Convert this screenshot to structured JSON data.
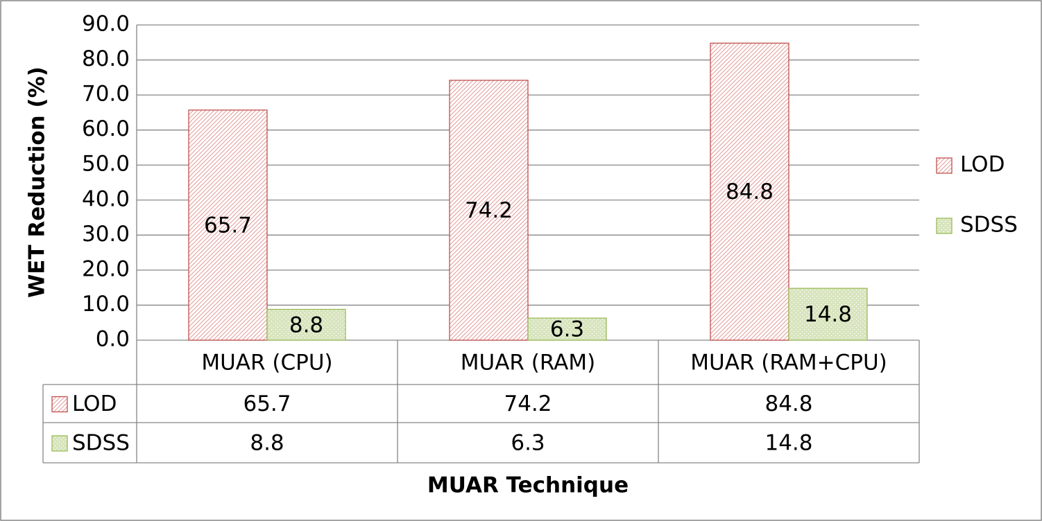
{
  "chart_data": {
    "type": "bar",
    "y_label": "WET Reduction (%)",
    "x_label": "MUAR Technique",
    "categories": [
      "MUAR (CPU)",
      "MUAR (RAM)",
      "MUAR (RAM+CPU)"
    ],
    "series": [
      {
        "name": "LOD",
        "color": "#c0504d",
        "fill": "#ffffff",
        "values": [
          65.7,
          74.2,
          84.8
        ]
      },
      {
        "name": "SDSS",
        "color": "#9bbb59",
        "fill": "#d7e4bd",
        "values": [
          8.8,
          6.3,
          14.8
        ]
      }
    ],
    "ylim": [
      0,
      90
    ],
    "yticks": [
      {
        "value": 0,
        "label": "0.0"
      },
      {
        "value": 10,
        "label": "10.0"
      },
      {
        "value": 20,
        "label": "20.0"
      },
      {
        "value": 30,
        "label": "30.0"
      },
      {
        "value": 40,
        "label": "40.0"
      },
      {
        "value": 50,
        "label": "50.0"
      },
      {
        "value": 60,
        "label": "60.0"
      },
      {
        "value": 70,
        "label": "70.0"
      },
      {
        "value": 80,
        "label": "80.0"
      },
      {
        "value": 90,
        "label": "90.0"
      }
    ],
    "grid": true,
    "legend": "right",
    "data_table": true
  }
}
